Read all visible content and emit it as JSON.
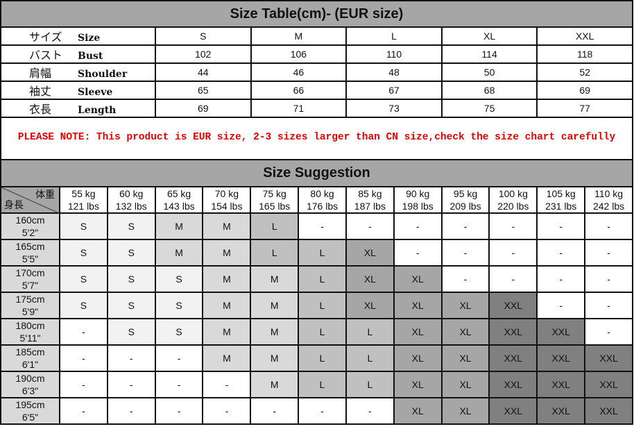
{
  "size_table": {
    "title": "Size Table(cm)- (EUR size)",
    "rows": [
      {
        "jp": "サイズ",
        "en": "Size",
        "values": [
          "S",
          "M",
          "L",
          "XL",
          "XXL"
        ]
      },
      {
        "jp": "バスト",
        "en": "Bust",
        "values": [
          "102",
          "106",
          "110",
          "114",
          "118"
        ]
      },
      {
        "jp": "肩幅",
        "en": "Shoulder",
        "values": [
          "44",
          "46",
          "48",
          "50",
          "52"
        ]
      },
      {
        "jp": "袖丈",
        "en": "Sleeve",
        "values": [
          "65",
          "66",
          "67",
          "68",
          "69"
        ]
      },
      {
        "jp": "衣長",
        "en": "Length",
        "values": [
          "69",
          "71",
          "73",
          "75",
          "77"
        ]
      }
    ]
  },
  "note": "PLEASE NOTE: This product is EUR size, 2-3 sizes larger than CN size,check the size chart carefully",
  "suggestion": {
    "title": "Size Suggestion",
    "corner_weight": "体重",
    "corner_height": "身長",
    "weights": [
      {
        "kg": "55 kg",
        "lbs": "121 lbs"
      },
      {
        "kg": "60 kg",
        "lbs": "132 lbs"
      },
      {
        "kg": "65 kg",
        "lbs": "143 lbs"
      },
      {
        "kg": "70 kg",
        "lbs": "154 lbs"
      },
      {
        "kg": "75 kg",
        "lbs": "165 lbs"
      },
      {
        "kg": "80 kg",
        "lbs": "176 lbs"
      },
      {
        "kg": "85 kg",
        "lbs": "187 lbs"
      },
      {
        "kg": "90 kg",
        "lbs": "198 lbs"
      },
      {
        "kg": "95 kg",
        "lbs": "209 lbs"
      },
      {
        "kg": "100 kg",
        "lbs": "220 lbs"
      },
      {
        "kg": "105 kg",
        "lbs": "231 lbs"
      },
      {
        "kg": "110 kg",
        "lbs": "242 lbs"
      }
    ],
    "rows": [
      {
        "cm": "160cm",
        "ft": "5'2\"",
        "sizes": [
          "S",
          "S",
          "M",
          "M",
          "L",
          "-",
          "-",
          "-",
          "-",
          "-",
          "-",
          "-"
        ]
      },
      {
        "cm": "165cm",
        "ft": "5'5\"",
        "sizes": [
          "S",
          "S",
          "M",
          "M",
          "L",
          "L",
          "XL",
          "-",
          "-",
          "-",
          "-",
          "-"
        ]
      },
      {
        "cm": "170cm",
        "ft": "5'7\"",
        "sizes": [
          "S",
          "S",
          "S",
          "M",
          "M",
          "L",
          "XL",
          "XL",
          "-",
          "-",
          "-",
          "-"
        ]
      },
      {
        "cm": "175cm",
        "ft": "5'9\"",
        "sizes": [
          "S",
          "S",
          "S",
          "M",
          "M",
          "L",
          "XL",
          "XL",
          "XL",
          "XXL",
          "-",
          "-"
        ]
      },
      {
        "cm": "180cm",
        "ft": "5'11\"",
        "sizes": [
          "-",
          "S",
          "S",
          "M",
          "M",
          "L",
          "L",
          "XL",
          "XL",
          "XXL",
          "XXL",
          "-"
        ]
      },
      {
        "cm": "185cm",
        "ft": "6'1\"",
        "sizes": [
          "-",
          "-",
          "-",
          "M",
          "M",
          "L",
          "L",
          "XL",
          "XL",
          "XXL",
          "XXL",
          "XXL"
        ]
      },
      {
        "cm": "190cm",
        "ft": "6'3\"",
        "sizes": [
          "-",
          "-",
          "-",
          "-",
          "M",
          "L",
          "L",
          "XL",
          "XL",
          "XXL",
          "XXL",
          "XXL"
        ]
      },
      {
        "cm": "195cm",
        "ft": "6'5\"",
        "sizes": [
          "-",
          "-",
          "-",
          "-",
          "-",
          "-",
          "-",
          "XL",
          "XL",
          "XXL",
          "XXL",
          "XXL"
        ]
      }
    ],
    "size_colors": {
      "S": "#f2f2f2",
      "M": "#d9d9d9",
      "L": "#c0c0c0",
      "XL": "#a6a6a6",
      "XXL": "#808080",
      "-": "#ffffff"
    }
  }
}
